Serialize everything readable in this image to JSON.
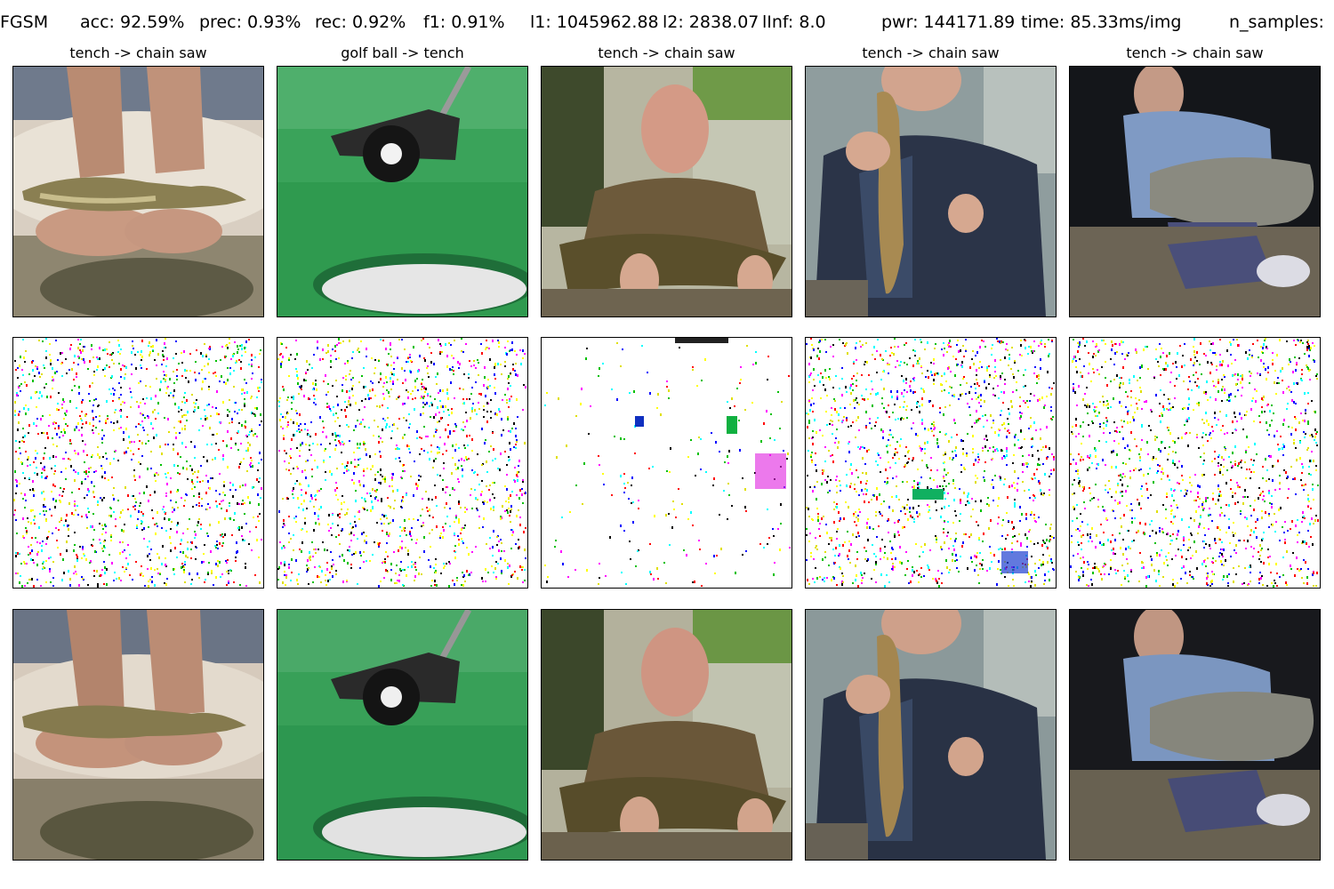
{
  "header": {
    "attack": "FGSM",
    "acc": "acc: 92.59%",
    "prec": "prec: 0.93%",
    "rec": "rec: 0.92%",
    "f1": "f1: 0.91%",
    "l1": "l1: 1045962.88",
    "l2": "l2: 2838.07",
    "linf": "lInf: 8.0",
    "pwr": "pwr: 144171.89",
    "time": "time: 85.33ms/img",
    "n_samples": "n_samples:"
  },
  "columns": [
    {
      "title": "tench -> chain saw",
      "scene": "fish-in-hands"
    },
    {
      "title": "golf ball -> tench",
      "scene": "golf-ball-putter"
    },
    {
      "title": "tench -> chain saw",
      "scene": "man-holding-carp"
    },
    {
      "title": "tench -> chain saw",
      "scene": "angler-with-fish"
    },
    {
      "title": "tench -> chain saw",
      "scene": "man-with-large-carp"
    }
  ],
  "rows": [
    "original",
    "perturbation",
    "adversarial"
  ]
}
